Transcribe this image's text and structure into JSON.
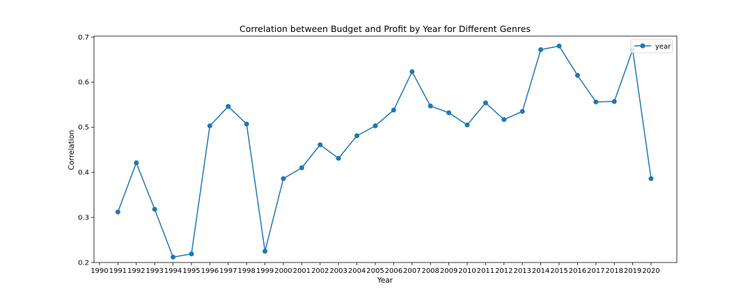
{
  "chart_data": {
    "type": "line",
    "title": "Correlation between Budget and Profit by Year for Different Genres",
    "xlabel": "Year",
    "ylabel": "Correlation",
    "xlim": [
      1989.7,
      2021.4
    ],
    "ylim": [
      0.2,
      0.702
    ],
    "x_ticks": [
      "1990",
      "1991",
      "1992",
      "1993",
      "1994",
      "1995",
      "1996",
      "1997",
      "1998",
      "1999",
      "2000",
      "2001",
      "2002",
      "2003",
      "2004",
      "2005",
      "2006",
      "2007",
      "2008",
      "2009",
      "2010",
      "2011",
      "2012",
      "2013",
      "2014",
      "2015",
      "2016",
      "2017",
      "2018",
      "2019",
      "2020"
    ],
    "y_ticks": [
      "0.2",
      "0.3",
      "0.4",
      "0.5",
      "0.6",
      "0.7"
    ],
    "grid": false,
    "legend_position": "top-right",
    "colors": {
      "series": "#1f77b4"
    },
    "series": [
      {
        "name": "year",
        "x": [
          1991,
          1992,
          1993,
          1994,
          1995,
          1996,
          1997,
          1998,
          1999,
          2000,
          2001,
          2002,
          2003,
          2004,
          2005,
          2006,
          2007,
          2008,
          2009,
          2010,
          2011,
          2012,
          2013,
          2014,
          2015,
          2016,
          2017,
          2018,
          2019,
          2020
        ],
        "values": [
          0.312,
          0.421,
          0.318,
          0.212,
          0.219,
          0.503,
          0.546,
          0.507,
          0.225,
          0.386,
          0.41,
          0.461,
          0.431,
          0.481,
          0.503,
          0.538,
          0.623,
          0.547,
          0.532,
          0.505,
          0.554,
          0.517,
          0.535,
          0.672,
          0.68,
          0.615,
          0.556,
          0.557,
          0.672,
          0.386
        ]
      }
    ]
  }
}
